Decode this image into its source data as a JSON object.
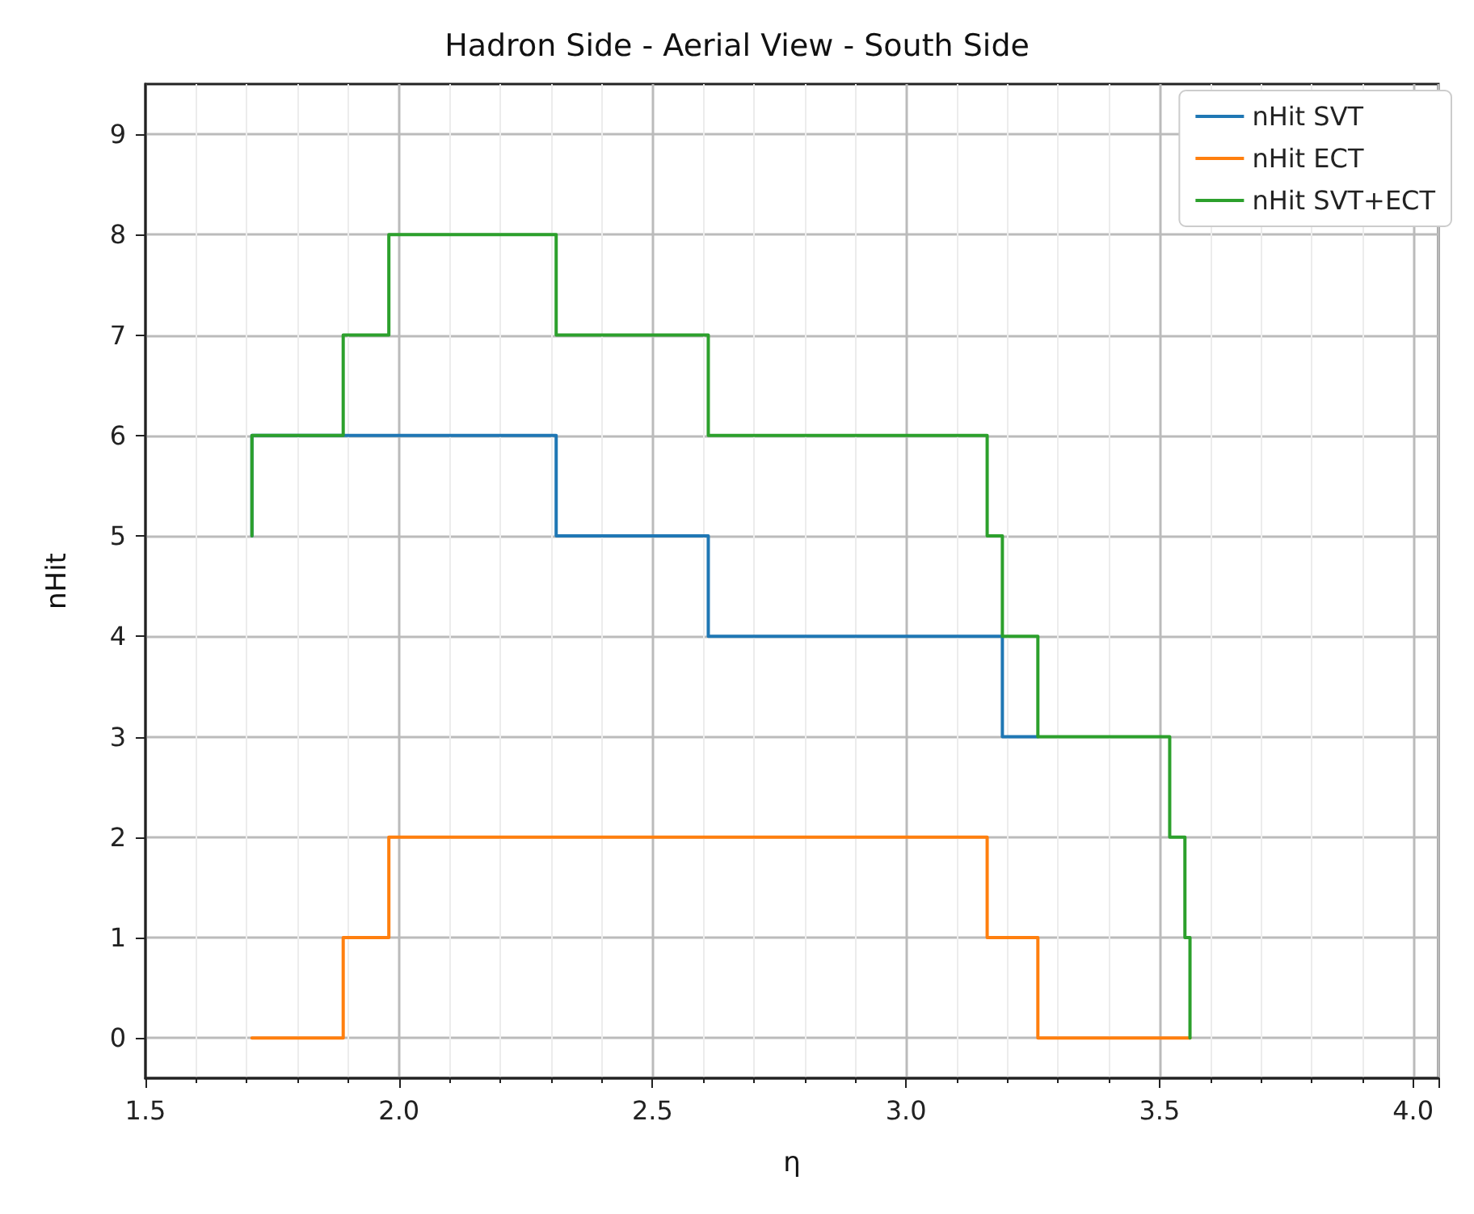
{
  "chart_data": {
    "type": "step",
    "title": "Hadron Side - Aerial View - South Side",
    "xlabel": "η",
    "ylabel": "nHit",
    "xlim": [
      1.5,
      4.05
    ],
    "xticks": [
      1.5,
      {
        "value": 2,
        "label": "2.0"
      },
      2.5,
      {
        "value": 3,
        "label": "3.0"
      },
      3.5,
      {
        "value": 4,
        "label": "4.0"
      }
    ],
    "ylim": [
      -0.4,
      9.5
    ],
    "yticks": [
      0,
      1,
      2,
      3,
      4,
      5,
      6,
      7,
      8,
      9
    ],
    "grid": true,
    "legend": "top right",
    "marker": "none",
    "line_style": "solid",
    "series": [
      {
        "name": "nHit SVT",
        "color": "#1f77b4",
        "x": [
          1.71,
          1.71,
          2.31,
          2.61,
          3.19,
          3.26
        ],
        "values": [
          5,
          6,
          5,
          4,
          3,
          3
        ]
      },
      {
        "name": "nHit ECT",
        "color": "#ff7f0e",
        "x": [
          1.71,
          1.89,
          1.98,
          3.16,
          3.26,
          3.56
        ],
        "values": [
          0,
          1,
          2,
          1,
          0,
          0
        ]
      },
      {
        "name": "nHit SVT+ECT",
        "color": "#2ca02c",
        "x": [
          1.71,
          1.71,
          1.89,
          1.98,
          2.31,
          2.61,
          3.16,
          3.19,
          3.26,
          3.52,
          3.55,
          3.56
        ],
        "values": [
          5,
          6,
          7,
          8,
          7,
          6,
          5,
          4,
          3,
          2,
          1,
          0
        ]
      }
    ]
  }
}
